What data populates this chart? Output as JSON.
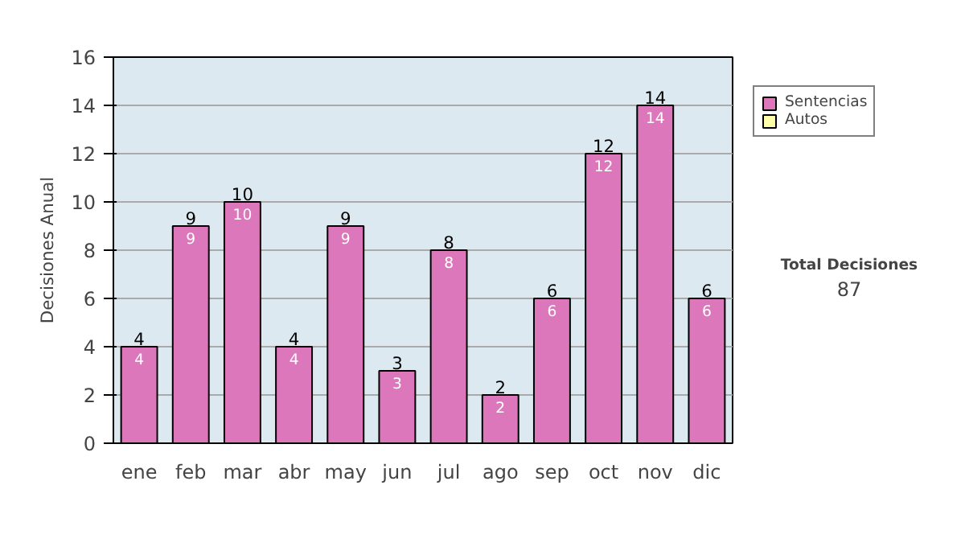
{
  "chart_data": {
    "type": "bar",
    "stacked": true,
    "ylabel": "Decisiones Anual",
    "categories": [
      "ene",
      "feb",
      "mar",
      "abr",
      "may",
      "jun",
      "jul",
      "ago",
      "sep",
      "oct",
      "nov",
      "dic"
    ],
    "series": [
      {
        "name": "Sentencias",
        "color": "#dd77bb",
        "values": [
          4,
          9,
          10,
          4,
          9,
          3,
          8,
          2,
          6,
          12,
          14,
          6
        ],
        "value_labels": [
          "4",
          "9",
          "10",
          "4",
          "9",
          "3",
          "8",
          "2",
          "6",
          "12",
          "14",
          "6"
        ]
      },
      {
        "name": "Autos",
        "color": "#ffffaa",
        "values": [
          0,
          0,
          0,
          0,
          0,
          0,
          0,
          0,
          0,
          0,
          0,
          0
        ]
      }
    ],
    "totals": [
      "4",
      "9",
      "10",
      "4",
      "9",
      "3",
      "8",
      "2",
      "6",
      "12",
      "14",
      "6"
    ],
    "ylim": [
      0,
      16
    ],
    "yticks": [
      0,
      2,
      4,
      6,
      8,
      10,
      12,
      14,
      16
    ],
    "grid": "y",
    "legend": "right",
    "annotations": [
      "Total Decisiones",
      "87"
    ]
  }
}
